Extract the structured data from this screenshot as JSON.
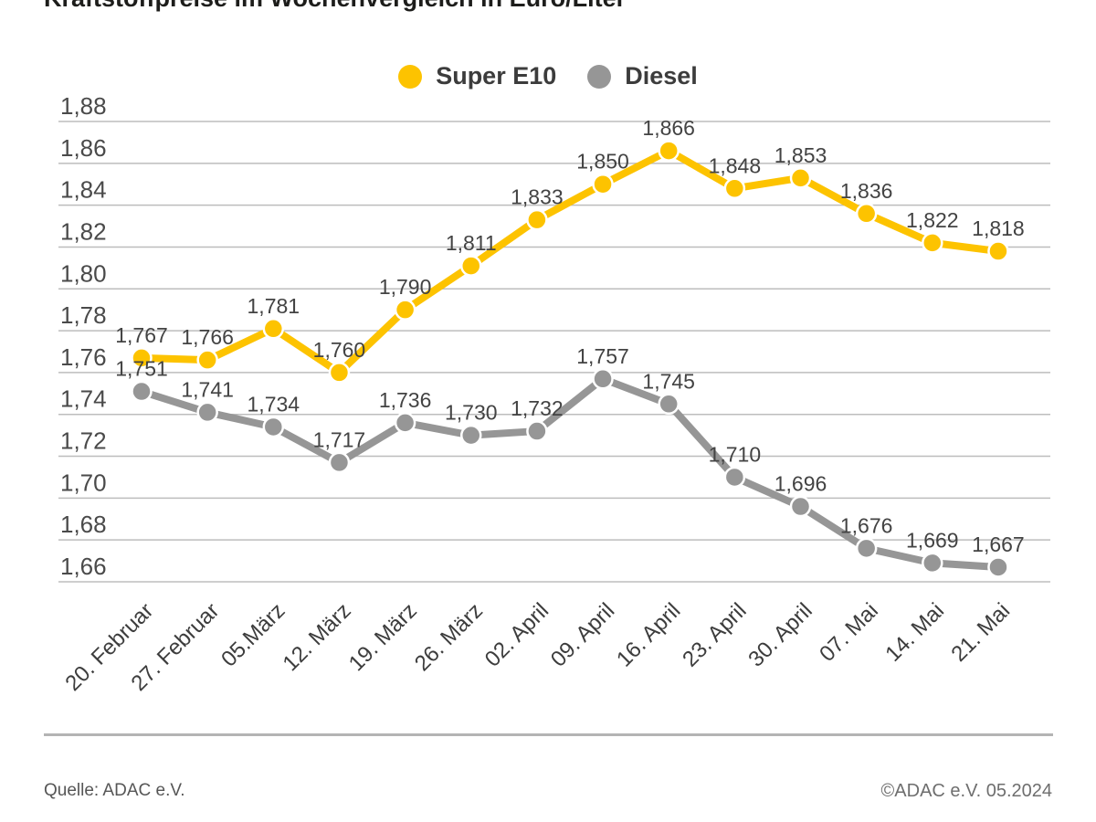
{
  "page": {
    "title": "Kraftstoffpreise im Wochenvergleich in Euro/Liter",
    "source_left": "Quelle: ADAC e.V.",
    "source_right": "©ADAC e.V. 05.2024"
  },
  "legend": {
    "items": [
      {
        "label": "Super E10",
        "color": "#fdc300"
      },
      {
        "label": "Diesel",
        "color": "#969696"
      }
    ]
  },
  "chart_data": {
    "type": "line",
    "title": "Kraftstoffpreise im Wochenvergleich in Euro/Liter",
    "unit": "Euro/Liter",
    "categories": [
      "20. Februar",
      "27. Februar",
      "05.März",
      "12. März",
      "19. März",
      "26. März",
      "02. April",
      "09. April",
      "16. April",
      "23. April",
      "30. April",
      "07. Mai",
      "14. Mai",
      "21. Mai"
    ],
    "series": [
      {
        "name": "Super E10",
        "color": "#fdc300",
        "values": [
          1.767,
          1.766,
          1.781,
          1.76,
          1.79,
          1.811,
          1.833,
          1.85,
          1.866,
          1.848,
          1.853,
          1.836,
          1.822,
          1.818
        ],
        "point_labels": [
          "1,767",
          "1,766",
          "1,781",
          "1,760",
          "1,790",
          "1,811",
          "1,833",
          "1,850",
          "1,866",
          "1,848",
          "1,853",
          "1,836",
          "1,822",
          "1,818"
        ]
      },
      {
        "name": "Diesel",
        "color": "#969696",
        "values": [
          1.751,
          1.741,
          1.734,
          1.717,
          1.736,
          1.73,
          1.732,
          1.757,
          1.745,
          1.71,
          1.696,
          1.676,
          1.669,
          1.667
        ],
        "point_labels": [
          "1,751",
          "1,741",
          "1,734",
          "1,717",
          "1,736",
          "1,730",
          "1,732",
          "1,757",
          "1,745",
          "1,710",
          "1,696",
          "1,676",
          "1,669",
          "1,667"
        ]
      }
    ],
    "ylim": [
      1.66,
      1.88
    ],
    "ytick_step": 0.02,
    "ytick_labels": [
      "1,88",
      "1,86",
      "1,84",
      "1,82",
      "1,80",
      "1,78",
      "1,76",
      "1,74",
      "1,72",
      "1,70",
      "1,68",
      "1,66"
    ],
    "grid": true,
    "legend_position": "top"
  }
}
